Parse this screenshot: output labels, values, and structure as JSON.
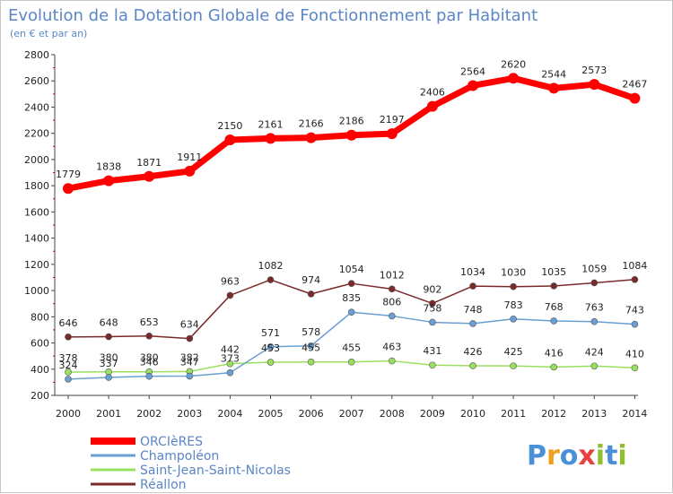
{
  "chart_data": {
    "type": "line",
    "title": "Evolution de la Dotation Globale de Fonctionnement par Habitant",
    "subtitle": "(en € et par an)",
    "xlabel": "",
    "ylabel": "",
    "x": [
      "2000",
      "2001",
      "2002",
      "2003",
      "2004",
      "2005",
      "2006",
      "2007",
      "2008",
      "2009",
      "2010",
      "2011",
      "2012",
      "2013",
      "2014"
    ],
    "yticks": [
      200,
      400,
      600,
      800,
      1000,
      1200,
      1400,
      1600,
      1800,
      2000,
      2200,
      2400,
      2600,
      2800
    ],
    "ylim": [
      200,
      2800
    ],
    "grid": false,
    "legend_position": "bottom-left",
    "series": [
      {
        "name": "ORCIèRES",
        "color": "#ff0000",
        "values": [
          1779,
          1838,
          1871,
          1911,
          2150,
          2161,
          2166,
          2186,
          2197,
          2406,
          2564,
          2620,
          2544,
          2573,
          2467
        ],
        "labels": [
          "1779",
          "1838",
          "1871",
          "1911",
          "2150",
          "2161",
          "2166",
          "2186",
          "2197",
          "2406",
          "2564",
          "2620",
          "2544",
          "2573",
          "2467"
        ]
      },
      {
        "name": "Champoléon",
        "color": "#6a9fd4",
        "values": [
          324,
          337,
          346,
          347,
          373,
          571,
          578,
          835,
          806,
          758,
          748,
          783,
          768,
          763,
          743
        ],
        "labels": [
          "324",
          "337",
          "346",
          "347",
          "373",
          "571",
          "578",
          "835",
          "806",
          "758",
          "748",
          "783",
          "768",
          "763",
          "743"
        ]
      },
      {
        "name": "Saint-Jean-Saint-Nicolas",
        "color": "#99e060",
        "values": [
          378,
          380,
          380,
          382,
          442,
          453,
          455,
          455,
          463,
          431,
          426,
          425,
          416,
          424,
          410
        ],
        "labels": [
          "378",
          "380",
          "380",
          "382",
          "442",
          "453",
          "455",
          "455",
          "463",
          "431",
          "426",
          "425",
          "416",
          "424",
          "410"
        ]
      },
      {
        "name": "Réallon",
        "color": "#7a2a2a",
        "values": [
          646,
          648,
          653,
          634,
          963,
          1082,
          974,
          1054,
          1012,
          902,
          1034,
          1030,
          1035,
          1059,
          1084
        ],
        "labels": [
          "646",
          "648",
          "653",
          "634",
          "963",
          "1082",
          "974",
          "1054",
          "1012",
          "902",
          "1034",
          "1030",
          "1035",
          "1059",
          "1084"
        ]
      }
    ]
  },
  "logo": {
    "text": "Proxiti"
  }
}
